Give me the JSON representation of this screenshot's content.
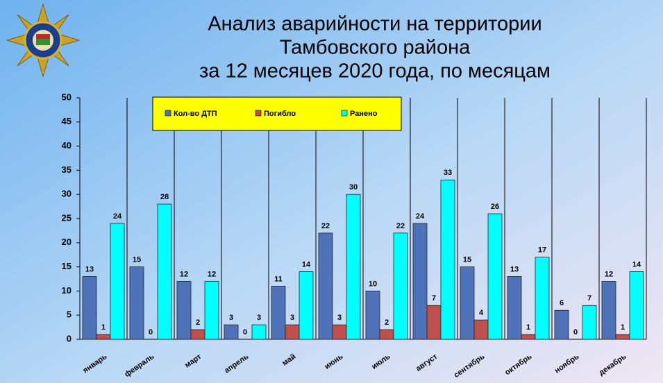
{
  "chart_data": {
    "type": "bar",
    "title": [
      "Анализ аварийности на территории",
      "Тамбовского района",
      "за 12 месяцев 2020 года, по месяцам"
    ],
    "categories": [
      "январь",
      "февраль",
      "март",
      "апрель",
      "май",
      "июнь",
      "июль",
      "август",
      "сентябрь",
      "октябрь",
      "ноябрь",
      "декабрь"
    ],
    "series": [
      {
        "name": "Кол-во ДТП",
        "color": "#4f73b8",
        "values": [
          13,
          15,
          12,
          3,
          11,
          22,
          10,
          24,
          15,
          13,
          6,
          12
        ]
      },
      {
        "name": "Погибло",
        "color": "#c0504d",
        "values": [
          1,
          0,
          2,
          0,
          3,
          3,
          2,
          7,
          4,
          1,
          0,
          1
        ]
      },
      {
        "name": "Ранено",
        "color": "#00ffff",
        "values": [
          24,
          28,
          12,
          3,
          14,
          30,
          22,
          33,
          26,
          17,
          7,
          14
        ]
      }
    ],
    "ylim": [
      0,
      50
    ],
    "yticks": [
      0,
      5,
      10,
      15,
      20,
      25,
      30,
      35,
      40,
      45,
      50
    ],
    "legend": "top",
    "legend_color": "#ffff00"
  }
}
